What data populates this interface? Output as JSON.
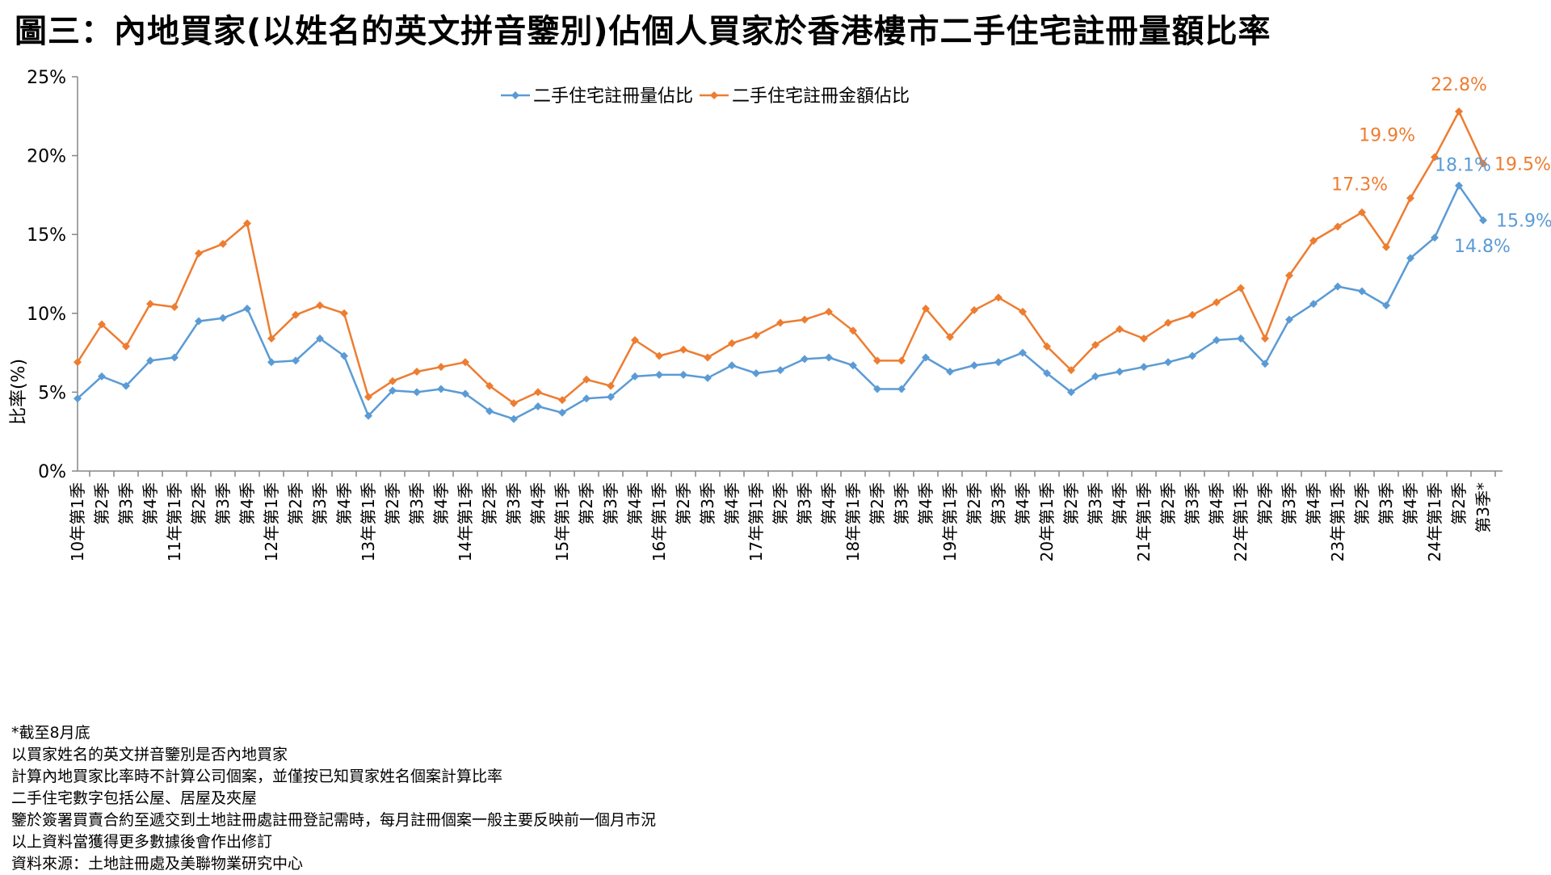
{
  "title": "圖三：內地買家(以姓名的英文拼音鑒別)佔個人買家於香港樓市二手住宅註冊量額比率",
  "chart_data": {
    "type": "line",
    "ylabel": "比率(%)",
    "ylim": [
      0,
      25
    ],
    "yticks": [
      0,
      5,
      10,
      15,
      20,
      25
    ],
    "yticklabels": [
      "0%",
      "5%",
      "10%",
      "15%",
      "20%",
      "25%"
    ],
    "legend_position": "top-center",
    "categories": [
      "10年第1季",
      "第2季",
      "第3季",
      "第4季",
      "11年第1季",
      "第2季",
      "第3季",
      "第4季",
      "12年第1季",
      "第2季",
      "第3季",
      "第4季",
      "13年第1季",
      "第2季",
      "第3季",
      "第4季",
      "14年第1季",
      "第2季",
      "第3季",
      "第4季",
      "15年第1季",
      "第2季",
      "第3季",
      "第4季",
      "16年第1季",
      "第2季",
      "第3季",
      "第4季",
      "17年第1季",
      "第2季",
      "第3季",
      "第4季",
      "18年第1季",
      "第2季",
      "第3季",
      "第4季",
      "19年第1季",
      "第2季",
      "第3季",
      "第4季",
      "20年第1季",
      "第2季",
      "第3季",
      "第4季",
      "21年第1季",
      "第2季",
      "第3季",
      "第4季",
      "22年第1季",
      "第2季",
      "第3季",
      "第4季",
      "23年第1季",
      "第2季",
      "第3季",
      "第4季",
      "24年第1季",
      "第2季",
      "第3季*"
    ],
    "series": [
      {
        "name": "二手住宅註冊量佔比",
        "color": "#5b9bd5",
        "values": [
          4.6,
          6.0,
          5.4,
          7.0,
          7.2,
          9.5,
          9.7,
          10.3,
          6.9,
          7.0,
          8.4,
          7.3,
          3.5,
          5.1,
          5.0,
          5.2,
          4.9,
          3.8,
          3.3,
          4.1,
          3.7,
          4.6,
          4.7,
          6.0,
          6.1,
          6.1,
          5.9,
          6.7,
          6.2,
          6.4,
          7.1,
          7.2,
          6.7,
          5.2,
          5.2,
          7.2,
          6.3,
          6.7,
          6.9,
          7.5,
          6.2,
          5.0,
          6.0,
          6.3,
          6.6,
          6.9,
          7.3,
          8.3,
          8.4,
          6.8,
          9.6,
          10.6,
          11.7,
          11.4,
          10.5,
          13.5,
          14.8,
          18.1,
          15.9
        ],
        "annotations": [
          {
            "index": 56,
            "text": "14.8%"
          },
          {
            "index": 57,
            "text": "18.1%"
          },
          {
            "index": 58,
            "text": "15.9%*"
          }
        ]
      },
      {
        "name": "二手住宅註冊金額佔比",
        "color": "#ed7d31",
        "values": [
          6.9,
          9.3,
          7.9,
          10.6,
          10.4,
          13.8,
          14.4,
          15.7,
          8.4,
          9.9,
          10.5,
          10.0,
          4.7,
          5.7,
          6.3,
          6.6,
          6.9,
          5.4,
          4.3,
          5.0,
          4.5,
          5.8,
          5.4,
          8.3,
          7.3,
          7.7,
          7.2,
          8.1,
          8.6,
          9.4,
          9.6,
          10.1,
          8.9,
          7.0,
          7.0,
          10.3,
          8.5,
          10.2,
          11.0,
          10.1,
          7.9,
          6.4,
          8.0,
          9.0,
          8.4,
          9.4,
          9.9,
          10.7,
          11.6,
          8.4,
          12.4,
          14.6,
          15.5,
          16.4,
          14.2,
          17.3,
          19.9,
          22.8,
          19.5
        ],
        "annotations": [
          {
            "index": 55,
            "text": "17.3%"
          },
          {
            "index": 56,
            "text": "19.9%"
          },
          {
            "index": 57,
            "text": "22.8%"
          },
          {
            "index": 58,
            "text": "19.5%*"
          }
        ]
      }
    ]
  },
  "notes": [
    "*截至8月底",
    "以買家姓名的英文拼音鑒別是否內地買家",
    "計算內地買家比率時不計算公司個案，並僅按已知買家姓名個案計算比率",
    "二手住宅數字包括公屋、居屋及夾屋",
    "鑒於簽署買賣合約至遞交到土地註冊處註冊登記需時，每月註冊個案一般主要反映前一個月市況",
    "以上資料當獲得更多數據後會作出修訂",
    "資料來源：土地註冊處及美聯物業研究中心"
  ]
}
